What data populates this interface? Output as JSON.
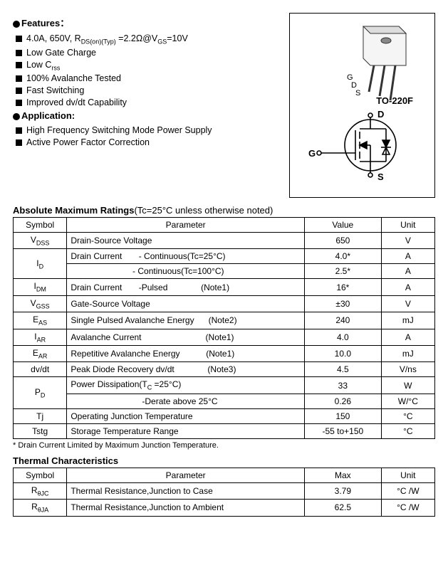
{
  "features": {
    "heading": "Features：",
    "items": [
      "4.0A, 650V, R<sub>DS(on)(Typ)</sub> =2.2Ω@V<sub>GS</sub>=10V",
      "Low Gate Charge",
      "Low C<sub>rss</sub>",
      "100% Avalanche Tested",
      "Fast Switching",
      "Improved dv/dt Capability"
    ]
  },
  "application": {
    "heading": "Application:",
    "items": [
      "High Frequency Switching Mode Power Supply",
      "Active Power Factor Correction"
    ]
  },
  "package": {
    "name": "TO-220F",
    "pins": [
      "G",
      "D",
      "S"
    ],
    "symbol_pins": {
      "d": "D",
      "g": "G",
      "s": "S"
    }
  },
  "abs_max": {
    "title": "Absolute Maximum Ratings",
    "title_note": "(Tc=25°C unless otherwise noted)",
    "headers": [
      "Symbol",
      "Parameter",
      "Value",
      "Unit"
    ],
    "rows": [
      {
        "sym": "V<sub>DSS</sub>",
        "param": "Drain-Source Voltage",
        "val": "650",
        "unit": "V"
      },
      {
        "sym": "I<sub>D</sub>",
        "param": "Drain Current&nbsp;&nbsp;&nbsp;&nbsp;&nbsp;&nbsp;&nbsp;- Continuous(Tc=25°C)",
        "val": "4.0*",
        "unit": "A",
        "rowspan_sym": 2
      },
      {
        "param": "&nbsp;&nbsp;&nbsp;&nbsp;&nbsp;&nbsp;&nbsp;&nbsp;&nbsp;&nbsp;&nbsp;&nbsp;&nbsp;&nbsp;&nbsp;&nbsp;&nbsp;&nbsp;&nbsp;&nbsp;&nbsp;&nbsp;&nbsp;&nbsp;&nbsp;&nbsp;- Continuous(Tc=100°C)",
        "val": "2.5*",
        "unit": "A"
      },
      {
        "sym": "I<sub>DM</sub>",
        "param": "Drain Current&nbsp;&nbsp;&nbsp;&nbsp;&nbsp;&nbsp;&nbsp;-Pulsed&nbsp;&nbsp;&nbsp;&nbsp;&nbsp;&nbsp;&nbsp;&nbsp;&nbsp;&nbsp;&nbsp;&nbsp;&nbsp;&nbsp;(Note1)",
        "val": "16*",
        "unit": "A"
      },
      {
        "sym": "V<sub>GSS</sub>",
        "param": "Gate-Source Voltage",
        "val": "±30",
        "unit": "V"
      },
      {
        "sym": "E<sub>AS</sub>",
        "param": "Single Pulsed Avalanche Energy&nbsp;&nbsp;&nbsp;&nbsp;&nbsp;&nbsp;(Note2)",
        "val": "240",
        "unit": "mJ"
      },
      {
        "sym": "I<sub>AR</sub>",
        "param": "Avalanche Current&nbsp;&nbsp;&nbsp;&nbsp;&nbsp;&nbsp;&nbsp;&nbsp;&nbsp;&nbsp;&nbsp;&nbsp;&nbsp;&nbsp;&nbsp;&nbsp;&nbsp;&nbsp;&nbsp;&nbsp;&nbsp;&nbsp;&nbsp;&nbsp;&nbsp;&nbsp;&nbsp;(Note1)",
        "val": "4.0",
        "unit": "A"
      },
      {
        "sym": "E<sub>AR</sub>",
        "param": "Repetitive Avalanche Energy&nbsp;&nbsp;&nbsp;&nbsp;&nbsp;&nbsp;&nbsp;&nbsp;&nbsp;&nbsp;&nbsp;(Note1)",
        "val": "10.0",
        "unit": "mJ"
      },
      {
        "sym": "dv/dt",
        "param": "Peak Diode Recovery dv/dt&nbsp;&nbsp;&nbsp;&nbsp;&nbsp;&nbsp;&nbsp;&nbsp;&nbsp;&nbsp;&nbsp;&nbsp;&nbsp;&nbsp;(Note3)",
        "val": "4.5",
        "unit": "V/ns"
      },
      {
        "sym": "P<sub>D</sub>",
        "param": "Power Dissipation(T<sub>C</sub> =25°C)",
        "val": "33",
        "unit": "W",
        "rowspan_sym": 2
      },
      {
        "param": "&nbsp;&nbsp;&nbsp;&nbsp;&nbsp;&nbsp;&nbsp;&nbsp;&nbsp;&nbsp;&nbsp;&nbsp;&nbsp;&nbsp;&nbsp;&nbsp;&nbsp;&nbsp;&nbsp;&nbsp;&nbsp;&nbsp;&nbsp;&nbsp;&nbsp;&nbsp;&nbsp;&nbsp;&nbsp;&nbsp;-Derate above 25°C",
        "val": "0.26",
        "unit": "W/°C"
      },
      {
        "sym": "Tj",
        "param": "Operating Junction Temperature",
        "val": "150",
        "unit": "°C"
      },
      {
        "sym": "Tstg",
        "param": "Storage Temperature Range",
        "val": "-55 to+150",
        "unit": "°C"
      }
    ],
    "footnote": "* Drain Current Limited by Maximum Junction Temperature."
  },
  "thermal": {
    "title": "Thermal Characteristics",
    "headers": [
      "Symbol",
      "Parameter",
      "Max",
      "Unit"
    ],
    "rows": [
      {
        "sym": "R<sub>θJC</sub>",
        "param": "Thermal Resistance,Junction to Case",
        "val": "3.79",
        "unit": "°C /W"
      },
      {
        "sym": "R<sub>θJA</sub>",
        "param": "Thermal Resistance,Junction to Ambient",
        "val": "62.5",
        "unit": "°C /W"
      }
    ]
  }
}
